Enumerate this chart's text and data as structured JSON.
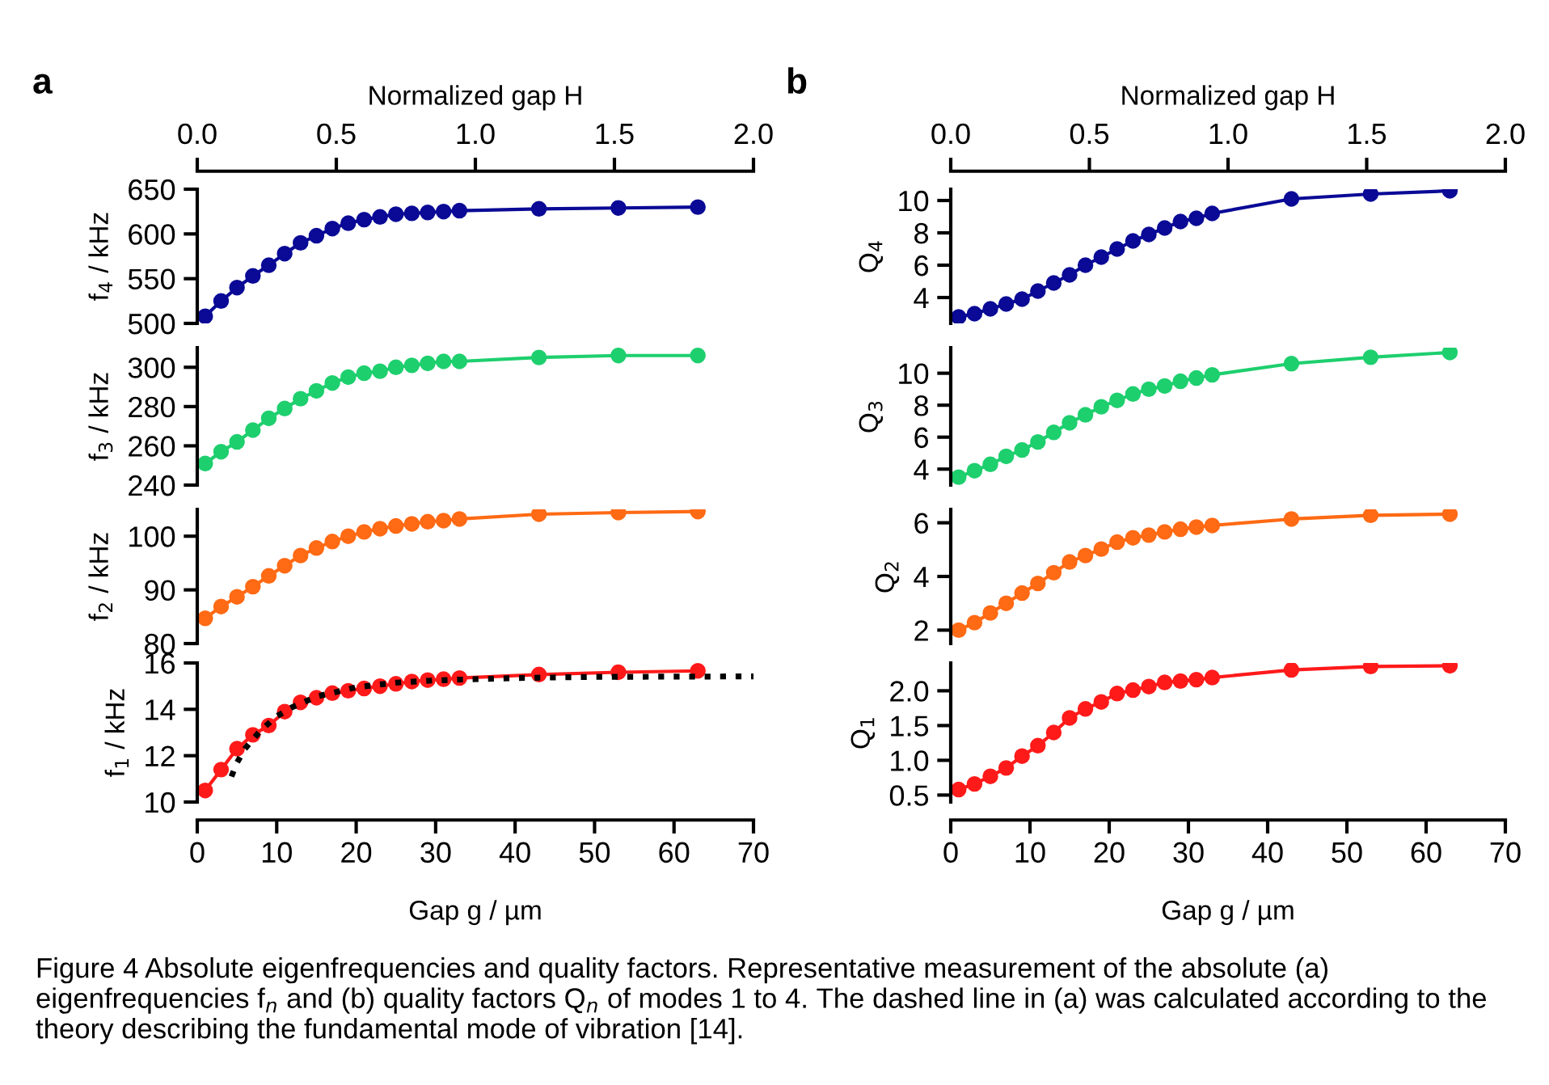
{
  "chart_data": [
    {
      "type": "line",
      "title": "a",
      "x2label": "Normalized gap H",
      "x2lim": [
        0,
        2
      ],
      "x2ticks": [
        {
          "value": 0,
          "label": "0.0"
        },
        {
          "value": 0.5,
          "label": "0.5"
        },
        {
          "value": 1,
          "label": "1.0"
        },
        {
          "value": 1.5,
          "label": "1.5"
        },
        {
          "value": 2,
          "label": "2.0"
        }
      ],
      "xlim": [
        0,
        70
      ],
      "tick_labels": "y",
      "ylabel": "f$_{4}$ / kHz",
      "ylim": [
        500,
        650
      ],
      "yticks": [
        500,
        550,
        600,
        650
      ],
      "marker": "circle",
      "annotations": [
        "Figure 4 Absolute eigenfrequencies and quality factors. Representative measurement of the absolute (a) eigenfrequencies f$_{n}$ and (b) quality factors Q$_{n}$ of modes 1 to 4. The dashed line in (a) was calculated according to the theory describing the fundamental mode of vibration [14]."
      ],
      "series": [
        {
          "color": "#0a0a96",
          "x": [
            1,
            3,
            5,
            7,
            9,
            11,
            13,
            15,
            17,
            19,
            21,
            23,
            25,
            27,
            29,
            31,
            33,
            43,
            53,
            63
          ],
          "values": [
            508,
            525,
            540,
            553,
            565,
            578,
            590,
            598,
            606,
            612,
            616,
            619,
            622,
            623,
            624,
            625,
            626,
            628,
            629,
            630
          ]
        }
      ]
    },
    {
      "type": "line",
      "xlim": [
        0,
        70
      ],
      "tick_labels": "y",
      "ylabel": "f$_{3}$ / kHz",
      "ylim": [
        240,
        310
      ],
      "yticks": [
        240,
        260,
        280,
        300
      ],
      "marker": "circle",
      "series": [
        {
          "color": "#1ecf6e",
          "x": [
            1,
            3,
            5,
            7,
            9,
            11,
            13,
            15,
            17,
            19,
            21,
            23,
            25,
            27,
            29,
            31,
            33,
            43,
            53,
            63
          ],
          "values": [
            251,
            257,
            262,
            268,
            274,
            279,
            284,
            288,
            292,
            295,
            297,
            298,
            300,
            301,
            302,
            303,
            303,
            305,
            306,
            306
          ]
        }
      ]
    },
    {
      "type": "line",
      "xlim": [
        0,
        70
      ],
      "tick_labels": "y",
      "ylabel": "f$_{2}$ / kHz",
      "ylim": [
        80,
        105
      ],
      "yticks": [
        80,
        90,
        100
      ],
      "marker": "circle",
      "series": [
        {
          "color": "#ff6a14",
          "x": [
            1,
            3,
            5,
            7,
            9,
            11,
            13,
            15,
            17,
            19,
            21,
            23,
            25,
            27,
            29,
            31,
            33,
            43,
            53,
            63
          ],
          "values": [
            84.7,
            86.9,
            88.7,
            90.6,
            92.6,
            94.5,
            96.4,
            97.8,
            99.0,
            100.0,
            100.8,
            101.4,
            101.9,
            102.3,
            102.7,
            102.9,
            103.2,
            104.1,
            104.4,
            104.6
          ]
        }
      ]
    },
    {
      "type": "line",
      "xlabel": "Gap g / µm",
      "xlim": [
        0,
        70
      ],
      "xticks": [
        0,
        10,
        20,
        30,
        40,
        50,
        60,
        70
      ],
      "ylabel": "f$_{1}$ / kHz",
      "ylim": [
        10,
        16
      ],
      "yticks": [
        10,
        12,
        14,
        16
      ],
      "marker": "circle",
      "series": [
        {
          "color": "#ff1a1a",
          "x": [
            1,
            3,
            5,
            7,
            9,
            11,
            13,
            15,
            17,
            19,
            21,
            23,
            25,
            27,
            29,
            31,
            33,
            43,
            53,
            63
          ],
          "values": [
            10.5,
            11.4,
            12.3,
            12.9,
            13.3,
            13.9,
            14.3,
            14.5,
            14.7,
            14.8,
            14.9,
            15.0,
            15.1,
            15.2,
            15.26,
            15.3,
            15.35,
            15.5,
            15.6,
            15.66
          ]
        },
        {
          "color": "#000000",
          "marker": "none",
          "line_style": "dotted",
          "x": [
            4.3,
            5,
            6,
            7,
            8,
            10,
            12,
            15,
            20,
            25,
            30,
            40,
            50,
            70
          ],
          "values": [
            11.1,
            11.7,
            12.3,
            12.7,
            13.1,
            13.7,
            14.1,
            14.55,
            14.95,
            15.15,
            15.25,
            15.35,
            15.4,
            15.42
          ]
        }
      ]
    },
    {
      "type": "line",
      "title": "b",
      "x2label": "Normalized gap H",
      "x2lim": [
        0,
        2
      ],
      "x2ticks": [
        {
          "value": 0,
          "label": "0.0"
        },
        {
          "value": 0.5,
          "label": "0.5"
        },
        {
          "value": 1,
          "label": "1.0"
        },
        {
          "value": 1.5,
          "label": "1.5"
        },
        {
          "value": 2,
          "label": "2.0"
        }
      ],
      "xlim": [
        0,
        70
      ],
      "tick_labels": "y",
      "ylabel": "Q$_{4}$",
      "ylim": [
        2.4,
        10.7
      ],
      "yticks": [
        4,
        6,
        8,
        10
      ],
      "marker": "circle",
      "series": [
        {
          "color": "#0a0a96",
          "x": [
            1,
            3,
            5,
            7,
            9,
            11,
            13,
            15,
            17,
            19,
            21,
            23,
            25,
            27,
            29,
            31,
            33,
            43,
            53,
            63
          ],
          "values": [
            2.8,
            3.0,
            3.3,
            3.6,
            3.9,
            4.4,
            4.9,
            5.4,
            6.0,
            6.5,
            7.0,
            7.5,
            7.9,
            8.3,
            8.7,
            8.9,
            9.2,
            10.1,
            10.4,
            10.6
          ]
        }
      ]
    },
    {
      "type": "line",
      "xlim": [
        0,
        70
      ],
      "tick_labels": "y",
      "ylabel": "Q$_{3}$",
      "ylim": [
        3,
        11.6
      ],
      "yticks": [
        4,
        6,
        8,
        10
      ],
      "marker": "circle",
      "series": [
        {
          "color": "#1ecf6e",
          "x": [
            1,
            3,
            5,
            7,
            9,
            11,
            13,
            15,
            17,
            19,
            21,
            23,
            25,
            27,
            29,
            31,
            33,
            43,
            53,
            63
          ],
          "values": [
            3.5,
            3.9,
            4.3,
            4.8,
            5.2,
            5.7,
            6.3,
            6.9,
            7.4,
            7.9,
            8.3,
            8.7,
            9.0,
            9.2,
            9.5,
            9.7,
            9.9,
            10.6,
            11.0,
            11.3
          ]
        }
      ]
    },
    {
      "type": "line",
      "xlim": [
        0,
        70
      ],
      "tick_labels": "y",
      "ylabel": "Q$_{2}$",
      "ylim": [
        1.5,
        6.5
      ],
      "yticks": [
        2,
        4,
        6
      ],
      "marker": "circle",
      "series": [
        {
          "color": "#ff6a14",
          "x": [
            1,
            3,
            5,
            7,
            9,
            11,
            13,
            15,
            17,
            19,
            21,
            23,
            25,
            27,
            29,
            31,
            33,
            43,
            53,
            63
          ],
          "values": [
            2.0,
            2.28,
            2.64,
            3.0,
            3.38,
            3.74,
            4.14,
            4.54,
            4.78,
            5.02,
            5.28,
            5.44,
            5.54,
            5.66,
            5.76,
            5.84,
            5.9,
            6.14,
            6.28,
            6.32
          ]
        }
      ]
    },
    {
      "type": "line",
      "xlabel": "Gap g / µm",
      "xlim": [
        0,
        70
      ],
      "xticks": [
        0,
        10,
        20,
        30,
        40,
        50,
        60,
        70
      ],
      "ylabel": "Q$_{1}$",
      "ylim": [
        0.4,
        2.4
      ],
      "yticks": [
        {
          "value": 0.5,
          "label": "0.5"
        },
        {
          "value": 1,
          "label": "1.0"
        },
        {
          "value": 1.5,
          "label": "1.5"
        },
        {
          "value": 2,
          "label": "2.0"
        }
      ],
      "marker": "circle",
      "series": [
        {
          "color": "#ff1a1a",
          "x": [
            1,
            3,
            5,
            7,
            9,
            11,
            13,
            15,
            17,
            19,
            21,
            23,
            25,
            27,
            29,
            31,
            33,
            43,
            53,
            63
          ],
          "values": [
            0.58,
            0.66,
            0.77,
            0.89,
            1.06,
            1.21,
            1.4,
            1.61,
            1.74,
            1.84,
            1.96,
            2.01,
            2.06,
            2.12,
            2.14,
            2.16,
            2.19,
            2.3,
            2.35,
            2.36
          ]
        }
      ]
    }
  ]
}
